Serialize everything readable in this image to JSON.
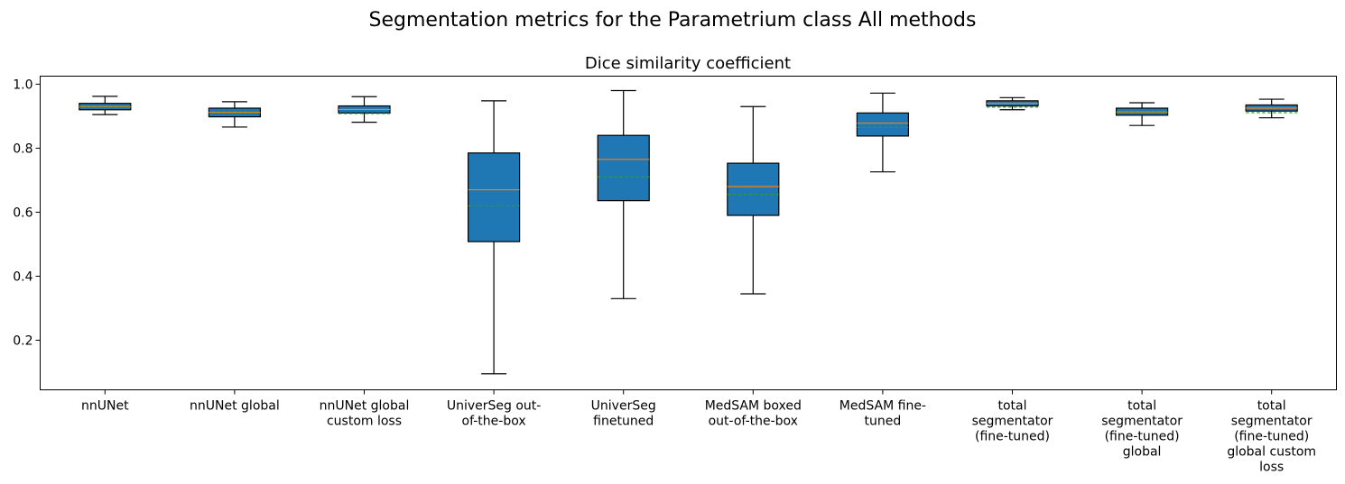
{
  "suptitle": "Segmentation metrics for the Parametrium class All methods",
  "chart_data": {
    "type": "box",
    "title": "Dice similarity coefficient",
    "xlabel": "",
    "ylabel": "",
    "ylim": [
      0.045,
      1.025
    ],
    "yticks": [
      0.2,
      0.4,
      0.6,
      0.8,
      1.0
    ],
    "ytick_labels": [
      "0.2",
      "0.4",
      "0.6",
      "0.8",
      "1.0"
    ],
    "grid": false,
    "colors": {
      "box": "#1f77b4",
      "median": "#ff7f0e",
      "mean": "#2ca02c",
      "whisker": "#000000"
    },
    "categories": [
      [
        "nnUNet"
      ],
      [
        "nnUNet global"
      ],
      [
        "nnUNet global",
        "custom loss"
      ],
      [
        "UniverSeg out-",
        "of-the-box"
      ],
      [
        "UniverSeg",
        "finetuned"
      ],
      [
        "MedSAM boxed",
        "out-of-the-box"
      ],
      [
        "MedSAM fine-",
        "tuned"
      ],
      [
        "total",
        "segmentator",
        "(fine-tuned)"
      ],
      [
        "total",
        "segmentator",
        "(fine-tuned)",
        "global"
      ],
      [
        "total",
        "segmentator",
        "(fine-tuned)",
        "global custom",
        "loss"
      ]
    ],
    "boxes": [
      {
        "whislo": 0.905,
        "q1": 0.92,
        "med": 0.93,
        "mean": 0.928,
        "q3": 0.94,
        "whishi": 0.962
      },
      {
        "whislo": 0.866,
        "q1": 0.898,
        "med": 0.912,
        "mean": 0.91,
        "q3": 0.925,
        "whishi": 0.945
      },
      {
        "whislo": 0.881,
        "q1": 0.91,
        "med": 0.921,
        "mean": 0.908,
        "q3": 0.932,
        "whishi": 0.961
      },
      {
        "whislo": 0.095,
        "q1": 0.508,
        "med": 0.67,
        "mean": 0.62,
        "q3": 0.785,
        "whishi": 0.948
      },
      {
        "whislo": 0.33,
        "q1": 0.636,
        "med": 0.765,
        "mean": 0.71,
        "q3": 0.84,
        "whishi": 0.98
      },
      {
        "whislo": 0.345,
        "q1": 0.59,
        "med": 0.68,
        "mean": 0.655,
        "q3": 0.753,
        "whishi": 0.93
      },
      {
        "whislo": 0.726,
        "q1": 0.838,
        "med": 0.878,
        "mean": 0.865,
        "q3": 0.91,
        "whishi": 0.972
      },
      {
        "whislo": 0.92,
        "q1": 0.932,
        "med": 0.94,
        "mean": 0.928,
        "q3": 0.948,
        "whishi": 0.958
      },
      {
        "whislo": 0.871,
        "q1": 0.903,
        "med": 0.913,
        "mean": 0.911,
        "q3": 0.925,
        "whishi": 0.942
      },
      {
        "whislo": 0.895,
        "q1": 0.916,
        "med": 0.925,
        "mean": 0.911,
        "q3": 0.935,
        "whishi": 0.953
      }
    ]
  }
}
